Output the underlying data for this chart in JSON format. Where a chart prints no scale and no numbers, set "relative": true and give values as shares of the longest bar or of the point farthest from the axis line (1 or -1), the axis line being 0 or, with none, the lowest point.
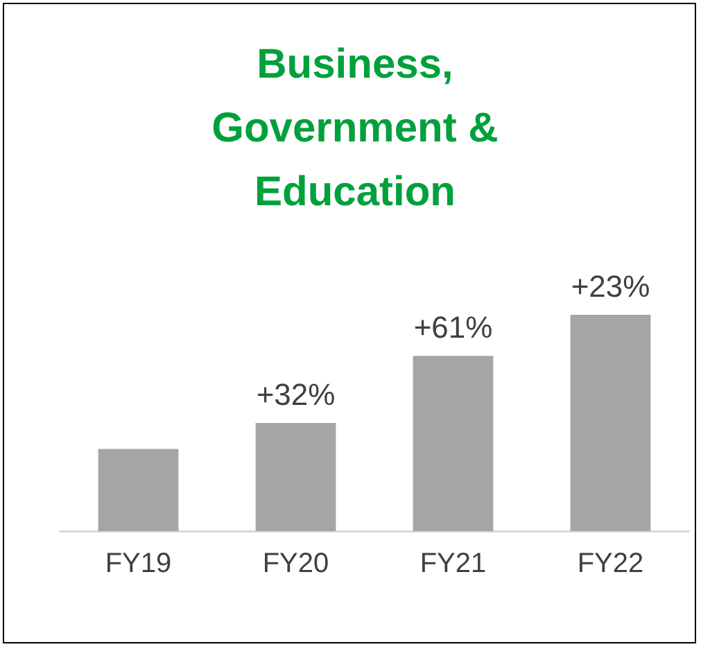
{
  "chart_data": {
    "type": "bar",
    "title": "Business, Government & Education",
    "relative": true,
    "categories": [
      "FY19",
      "FY20",
      "FY21",
      "FY22"
    ],
    "values": [
      0.38,
      0.5,
      0.81,
      1
    ],
    "color": "#a5a5a5",
    "annotations": [
      {
        "text": "+32%",
        "x": "FY20",
        "y": 0.5
      },
      {
        "text": "+61%",
        "x": "FY21",
        "y": 0.81
      },
      {
        "text": "+23%",
        "x": "FY22",
        "y": 1
      }
    ],
    "grid": false,
    "legend": false
  }
}
